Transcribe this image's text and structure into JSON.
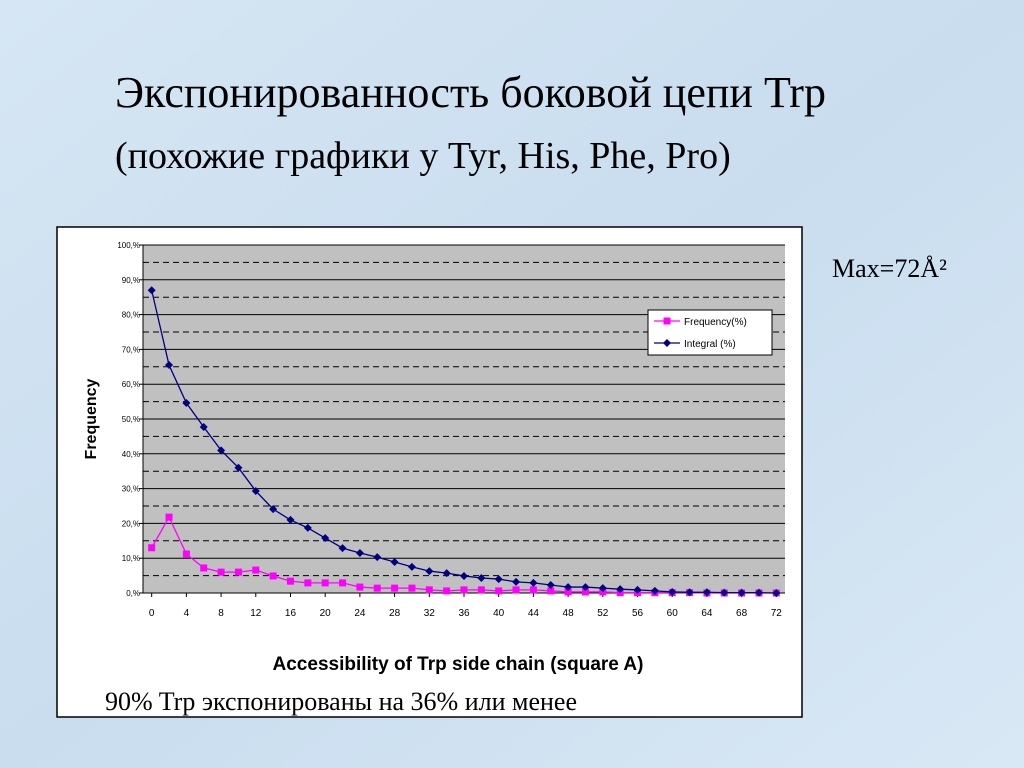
{
  "slide": {
    "title": "Экспонированность боковой цепи Trp",
    "subtitle": "(похожие графики у Tyr, His, Phe, Pro)",
    "note": "Max=72Å²",
    "caption": "90% Trp  экспонированы на 36%  или менее"
  },
  "chart_data": {
    "type": "line",
    "x_label": "Accessibility of Trp side chain (square A)",
    "y_label": "Frequency",
    "x": [
      0,
      2,
      4,
      6,
      8,
      10,
      12,
      14,
      16,
      18,
      20,
      22,
      24,
      26,
      28,
      30,
      32,
      34,
      36,
      38,
      40,
      42,
      44,
      46,
      48,
      50,
      52,
      54,
      56,
      58,
      60,
      62,
      64,
      66,
      68,
      70,
      72
    ],
    "series": [
      {
        "name": "Frequency(%)",
        "color": "#ff00ff",
        "marker": "square",
        "values": [
          13,
          21.8,
          11.2,
          7.2,
          6,
          6,
          6.6,
          4.9,
          3.4,
          2.9,
          2.9,
          2.9,
          1.7,
          1.4,
          1.4,
          1.4,
          0.9,
          0.6,
          0.9,
          0.9,
          0.6,
          0.9,
          0.9,
          0.6,
          0.3,
          0.3,
          0.3,
          0.1,
          0.1,
          0.1,
          0.1,
          0.1,
          0,
          0,
          0,
          0,
          0
        ]
      },
      {
        "name": "Integral (%)",
        "color": "#000080",
        "marker": "diamond",
        "values": [
          87,
          65.5,
          54.6,
          47.7,
          41,
          36,
          29.3,
          24.1,
          21,
          18.7,
          15.8,
          12.9,
          11.5,
          10.3,
          8.9,
          7.5,
          6.3,
          5.7,
          4.9,
          4.3,
          4,
          3.2,
          2.9,
          2.3,
          1.7,
          1.7,
          1.4,
          1.1,
          0.9,
          0.6,
          0.3,
          0.2,
          0.2,
          0.1,
          0.1,
          0.1,
          0
        ]
      }
    ],
    "xlim": [
      -1,
      73
    ],
    "xticks": [
      0,
      4,
      8,
      12,
      16,
      20,
      24,
      28,
      32,
      36,
      40,
      44,
      48,
      52,
      56,
      60,
      64,
      68,
      72
    ],
    "ylim": [
      0,
      100
    ],
    "yticks": [
      {
        "value": 0,
        "label": "0,%"
      },
      {
        "value": 10,
        "label": "10,%"
      },
      {
        "value": 20,
        "label": "20,%"
      },
      {
        "value": 30,
        "label": "30,%"
      },
      {
        "value": 40,
        "label": "40,%"
      },
      {
        "value": 50,
        "label": "50,%"
      },
      {
        "value": 60,
        "label": "60,%"
      },
      {
        "value": 70,
        "label": "70,%"
      },
      {
        "value": 80,
        "label": "80,%"
      },
      {
        "value": 90,
        "label": "90,%"
      },
      {
        "value": 100,
        "label": "100,%"
      }
    ],
    "minor_yticks": [
      5,
      15,
      25,
      35,
      45,
      55,
      65,
      75,
      85,
      95
    ],
    "grid": true,
    "legend": "upper right"
  }
}
